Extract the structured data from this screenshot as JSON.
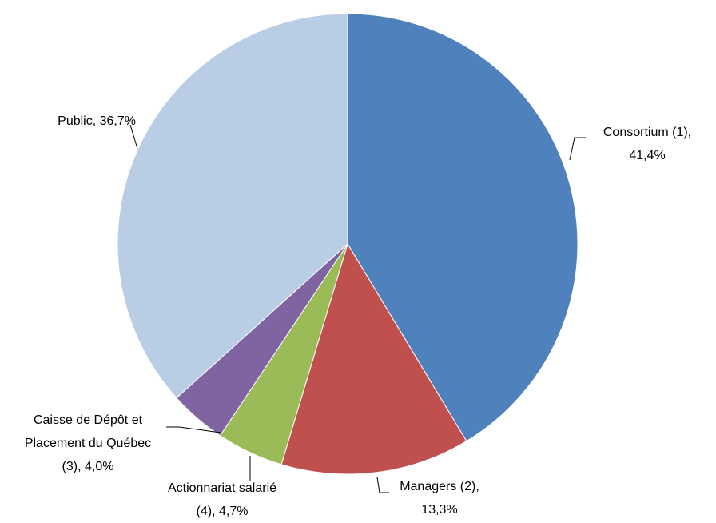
{
  "chart_data": {
    "type": "pie",
    "categories": [
      "Consortium (1),",
      "Managers (2),",
      "Actionnariat salarié (4),",
      "Caisse de Dépôt et Placement du Québec (3),",
      "Public,"
    ],
    "values": [
      41.4,
      13.3,
      4.7,
      4.0,
      36.7
    ],
    "value_labels": [
      "41,4%",
      "13,3%",
      "4,7%",
      "4,0%",
      "36,7%"
    ],
    "colors": [
      "#4f81bd",
      "#c0504d",
      "#9bbb59",
      "#8064a2",
      "#b9cde5"
    ]
  }
}
